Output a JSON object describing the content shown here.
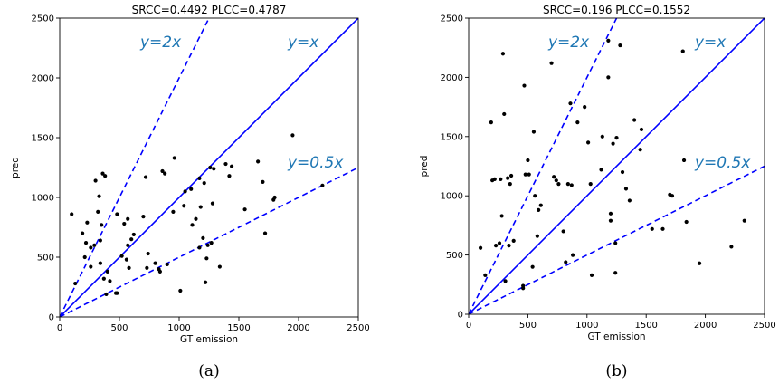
{
  "chart_data": [
    {
      "type": "scatter",
      "title": "SRCC=0.4492 PLCC=0.4787",
      "xlabel": "GT emission",
      "ylabel": "pred",
      "caption": "(a)",
      "xlim": [
        0,
        2500
      ],
      "ylim": [
        0,
        2500
      ],
      "xticks": [
        0,
        500,
        1000,
        1500,
        2000,
        2500
      ],
      "yticks": [
        0,
        500,
        1000,
        1500,
        2000,
        2500
      ],
      "reference_lines": [
        {
          "label": "y=2x",
          "slope": 2,
          "style": "dashed",
          "color": "#0000ff"
        },
        {
          "label": "y=x",
          "slope": 1,
          "style": "solid",
          "color": "#0000ff"
        },
        {
          "label": "y=0.5x",
          "slope": 0.5,
          "style": "dashed",
          "color": "#0000ff"
        }
      ],
      "points": [
        [
          100,
          860
        ],
        [
          130,
          280
        ],
        [
          190,
          700
        ],
        [
          210,
          500
        ],
        [
          220,
          620
        ],
        [
          230,
          790
        ],
        [
          260,
          580
        ],
        [
          260,
          420
        ],
        [
          290,
          600
        ],
        [
          300,
          1140
        ],
        [
          320,
          880
        ],
        [
          330,
          1010
        ],
        [
          340,
          450
        ],
        [
          340,
          640
        ],
        [
          350,
          770
        ],
        [
          360,
          1200
        ],
        [
          370,
          320
        ],
        [
          380,
          1180
        ],
        [
          400,
          380
        ],
        [
          390,
          190
        ],
        [
          420,
          300
        ],
        [
          470,
          200
        ],
        [
          480,
          860
        ],
        [
          480,
          200
        ],
        [
          520,
          510
        ],
        [
          540,
          780
        ],
        [
          560,
          480
        ],
        [
          570,
          600
        ],
        [
          570,
          820
        ],
        [
          580,
          410
        ],
        [
          600,
          650
        ],
        [
          620,
          690
        ],
        [
          700,
          840
        ],
        [
          720,
          1170
        ],
        [
          730,
          410
        ],
        [
          740,
          530
        ],
        [
          800,
          450
        ],
        [
          830,
          400
        ],
        [
          840,
          380
        ],
        [
          860,
          1220
        ],
        [
          880,
          1200
        ],
        [
          900,
          440
        ],
        [
          950,
          880
        ],
        [
          960,
          1330
        ],
        [
          1010,
          220
        ],
        [
          1040,
          930
        ],
        [
          1050,
          1050
        ],
        [
          1100,
          1070
        ],
        [
          1110,
          770
        ],
        [
          1140,
          820
        ],
        [
          1170,
          1160
        ],
        [
          1170,
          580
        ],
        [
          1180,
          920
        ],
        [
          1200,
          660
        ],
        [
          1210,
          1120
        ],
        [
          1220,
          290
        ],
        [
          1230,
          490
        ],
        [
          1240,
          600
        ],
        [
          1260,
          1250
        ],
        [
          1270,
          620
        ],
        [
          1280,
          950
        ],
        [
          1290,
          1240
        ],
        [
          1340,
          420
        ],
        [
          1390,
          1280
        ],
        [
          1420,
          1180
        ],
        [
          1440,
          1260
        ],
        [
          1550,
          900
        ],
        [
          1660,
          1300
        ],
        [
          1700,
          1130
        ],
        [
          1720,
          700
        ],
        [
          1790,
          980
        ],
        [
          1800,
          1000
        ],
        [
          1950,
          1520
        ],
        [
          2200,
          1100
        ]
      ]
    },
    {
      "type": "scatter",
      "title": "SRCC=0.196 PLCC=0.1552",
      "xlabel": "GT emission",
      "ylabel": "pred",
      "caption": "(b)",
      "xlim": [
        0,
        2500
      ],
      "ylim": [
        0,
        2500
      ],
      "xticks": [
        0,
        500,
        1000,
        1500,
        2000,
        2500
      ],
      "yticks": [
        0,
        500,
        1000,
        1500,
        2000,
        2500
      ],
      "reference_lines": [
        {
          "label": "y=2x",
          "slope": 2,
          "style": "dashed",
          "color": "#0000ff"
        },
        {
          "label": "y=x",
          "slope": 1,
          "style": "solid",
          "color": "#0000ff"
        },
        {
          "label": "y=0.5x",
          "slope": 0.5,
          "style": "dashed",
          "color": "#0000ff"
        }
      ],
      "points": [
        [
          100,
          560
        ],
        [
          140,
          330
        ],
        [
          190,
          1620
        ],
        [
          200,
          1130
        ],
        [
          220,
          1140
        ],
        [
          230,
          580
        ],
        [
          260,
          600
        ],
        [
          270,
          1140
        ],
        [
          280,
          830
        ],
        [
          290,
          2200
        ],
        [
          300,
          1690
        ],
        [
          310,
          280
        ],
        [
          330,
          1150
        ],
        [
          340,
          580
        ],
        [
          350,
          1100
        ],
        [
          360,
          1170
        ],
        [
          380,
          620
        ],
        [
          460,
          240
        ],
        [
          460,
          220
        ],
        [
          470,
          1930
        ],
        [
          480,
          1180
        ],
        [
          500,
          1300
        ],
        [
          510,
          1180
        ],
        [
          540,
          400
        ],
        [
          550,
          1540
        ],
        [
          560,
          1000
        ],
        [
          580,
          660
        ],
        [
          590,
          880
        ],
        [
          610,
          920
        ],
        [
          700,
          2120
        ],
        [
          720,
          1160
        ],
        [
          740,
          1130
        ],
        [
          760,
          1100
        ],
        [
          800,
          700
        ],
        [
          820,
          440
        ],
        [
          840,
          1100
        ],
        [
          860,
          1780
        ],
        [
          870,
          1090
        ],
        [
          880,
          500
        ],
        [
          920,
          1620
        ],
        [
          980,
          1750
        ],
        [
          1010,
          1450
        ],
        [
          1030,
          1100
        ],
        [
          1040,
          330
        ],
        [
          1120,
          1220
        ],
        [
          1130,
          1500
        ],
        [
          1180,
          2310
        ],
        [
          1180,
          2000
        ],
        [
          1200,
          850
        ],
        [
          1200,
          790
        ],
        [
          1220,
          1440
        ],
        [
          1240,
          600
        ],
        [
          1240,
          350
        ],
        [
          1250,
          1490
        ],
        [
          1280,
          2270
        ],
        [
          1300,
          1200
        ],
        [
          1330,
          1060
        ],
        [
          1360,
          960
        ],
        [
          1400,
          1640
        ],
        [
          1450,
          1390
        ],
        [
          1460,
          1560
        ],
        [
          1550,
          720
        ],
        [
          1640,
          720
        ],
        [
          1700,
          1010
        ],
        [
          1720,
          1000
        ],
        [
          1810,
          2220
        ],
        [
          1820,
          1300
        ],
        [
          1840,
          780
        ],
        [
          1950,
          430
        ],
        [
          2220,
          570
        ],
        [
          2330,
          790
        ]
      ]
    }
  ]
}
